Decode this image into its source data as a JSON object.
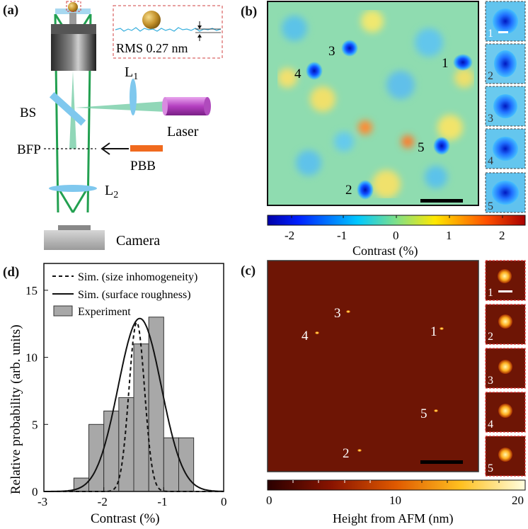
{
  "panel_a": {
    "label": "(a)",
    "rms_text": "RMS 0.27 nm",
    "components": {
      "l1": "L",
      "l1_sub": "1",
      "l2": "L",
      "l2_sub": "2",
      "bs": "BS",
      "laser": "Laser",
      "bfp": "BFP",
      "pbb": "PBB",
      "camera": "Camera"
    },
    "colors": {
      "beam": "#22a050",
      "lens": "#7fc8ee",
      "laser": "#c050c8",
      "pbb": "#f06a1e",
      "gold": "#c89a2a"
    }
  },
  "panel_b": {
    "label": "(b)",
    "particle_labels": [
      "1",
      "2",
      "3",
      "4",
      "5"
    ],
    "particles": [
      {
        "label": "1",
        "contrast": -2.1
      },
      {
        "label": "2",
        "contrast": -1.9
      },
      {
        "label": "3",
        "contrast": -1.8
      },
      {
        "label": "4",
        "contrast": -1.9
      },
      {
        "label": "5",
        "contrast": -2.0
      }
    ],
    "inset_labels": [
      "1",
      "2",
      "3",
      "4",
      "5"
    ],
    "colorbar": {
      "ticks": [
        "-2",
        "-1",
        "0",
        "1",
        "2"
      ],
      "title": "Contrast (%)",
      "range": [
        -2.4,
        2.4
      ]
    }
  },
  "panel_c": {
    "label": "(c)",
    "particle_labels": [
      "1",
      "2",
      "3",
      "4",
      "5"
    ],
    "inset_labels": [
      "1",
      "2",
      "3",
      "4",
      "5"
    ],
    "colorbar": {
      "ticks": [
        "0",
        "10",
        "20"
      ],
      "title": "Height from AFM (nm)",
      "range": [
        0,
        20
      ]
    }
  },
  "panel_d": {
    "label": "(d)"
  },
  "chart_data": {
    "type": "bar",
    "xlabel": "Contrast (%)",
    "ylabel": "Relative probability (arb. units)",
    "xlim": [
      -3,
      0
    ],
    "ylim": [
      0,
      17
    ],
    "xticks": [
      "-3",
      "-2",
      "-1",
      "0"
    ],
    "yticks": [
      "0",
      "5",
      "10",
      "15"
    ],
    "bin_width": 0.25,
    "bins_left": [
      -2.5,
      -2.25,
      -2.0,
      -1.75,
      -1.5,
      -1.25,
      -1.0,
      -0.75
    ],
    "values": [
      1,
      5,
      6,
      7,
      11,
      13,
      4,
      4
    ],
    "legend_position": "top",
    "legend": [
      "Sim. (size inhomogeneity)",
      "Sim. (surface roughness)",
      "Experiment"
    ],
    "series": [
      {
        "name": "Experiment",
        "type": "bar",
        "color": "#a8a8a8"
      },
      {
        "name": "Sim. (size inhomogeneity)",
        "type": "line",
        "style": "dashed",
        "mean": -1.45,
        "sigma": 0.13,
        "peak": 12.6
      },
      {
        "name": "Sim. (surface roughness)",
        "type": "line",
        "style": "solid",
        "mean": -1.4,
        "sigma": 0.36,
        "peak": 12.9
      }
    ]
  }
}
